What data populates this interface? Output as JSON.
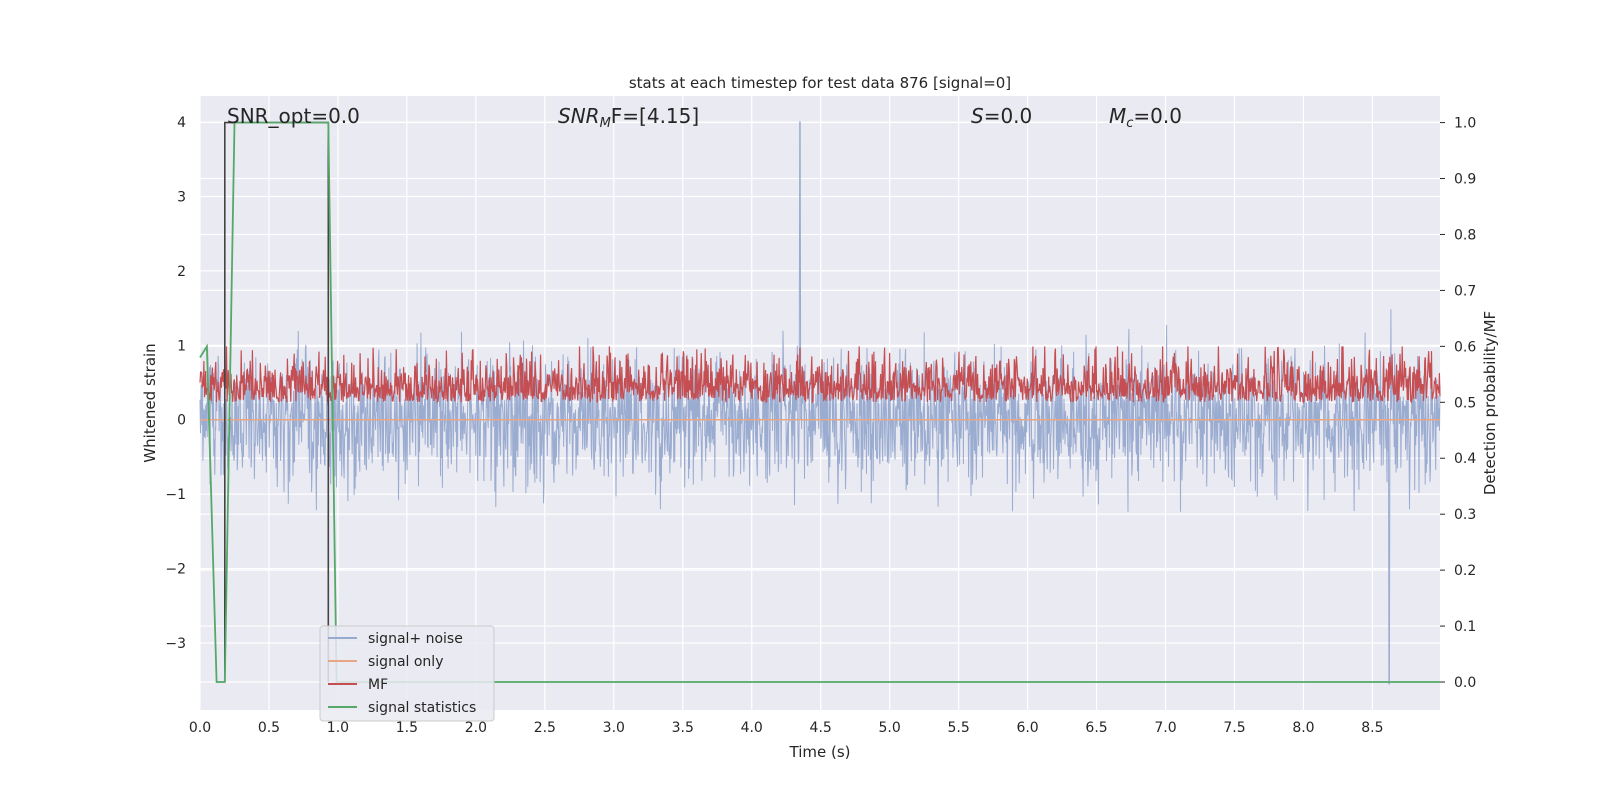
{
  "chart_data": {
    "type": "line",
    "title": "stats at each timestep for test data 876 [signal=0]",
    "xlabel": "Time (s)",
    "ylabel_left": "Whitened strain",
    "ylabel_right": "Detection probability/MF",
    "xlim": [
      0.0,
      8.99
    ],
    "ylim_left": [
      -3.9,
      4.35
    ],
    "ylim_right": [
      -0.05,
      1.0475
    ],
    "xticks": [
      "0.0",
      "0.5",
      "1.0",
      "1.5",
      "2.0",
      "2.5",
      "3.0",
      "3.5",
      "4.0",
      "4.5",
      "5.0",
      "5.5",
      "6.0",
      "6.5",
      "7.0",
      "7.5",
      "8.0",
      "8.5"
    ],
    "yticks_left": [
      "4",
      "3",
      "2",
      "1",
      "0",
      "−1",
      "−2",
      "−3"
    ],
    "yticks_right": [
      "1.0",
      "0.9",
      "0.8",
      "0.7",
      "0.6",
      "0.5",
      "0.4",
      "0.3",
      "0.2",
      "0.1",
      "0.0"
    ],
    "grid": true,
    "legend_position": "lower-left",
    "annotations": {
      "snr_opt": "SNR_opt=0.0",
      "snr_mf_name": "SNR",
      "snr_mf_sub": "M",
      "snr_mf_rest": "F=[4.15]",
      "s_name": "S",
      "s_rest": "=0.0",
      "mc_name": "M",
      "mc_sub": "c",
      "mc_rest": "=0.0"
    },
    "noise_envelope": {
      "upper_typical": 1.7,
      "lower_typical": -1.7,
      "max": 4.0,
      "max_at": 4.35,
      "min": -3.55,
      "min_at": 8.62
    },
    "mf_band": {
      "low": 0.5,
      "high": 0.6
    },
    "series": [
      {
        "name": "signal+ noise",
        "color": "#97a9cf",
        "axis": "left"
      },
      {
        "name": "signal only",
        "color": "#e8a784",
        "axis": "left",
        "x": [
          0.0,
          8.99
        ],
        "y": [
          0.0,
          0.0
        ]
      },
      {
        "name": "MF",
        "color": "#c44e52",
        "axis": "right"
      },
      {
        "name": "signal statistics",
        "color": "#55a868",
        "axis": "right",
        "x": [
          0.0,
          0.05,
          0.12,
          0.18,
          0.25,
          0.93,
          0.99,
          1.0,
          8.99
        ],
        "y": [
          0.58,
          0.6,
          0.0,
          0.0,
          1.0,
          1.0,
          0.0,
          0.0,
          0.0
        ]
      }
    ],
    "marker_line": {
      "color": "#444444",
      "x": [
        0.18,
        0.18,
        0.93,
        0.93
      ],
      "y": [
        0.0,
        1.0,
        1.0,
        0.0
      ]
    },
    "legend": [
      "signal+ noise",
      "signal only",
      "MF",
      "signal statistics"
    ]
  }
}
